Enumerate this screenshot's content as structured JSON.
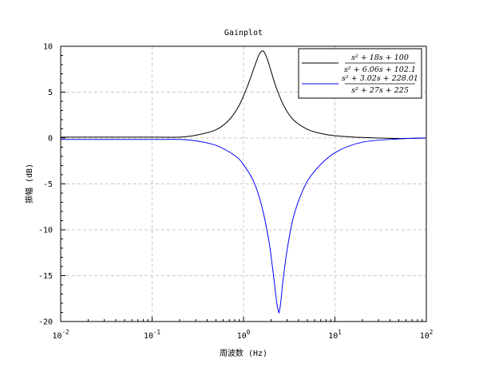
{
  "chart_data": {
    "type": "line",
    "title": "Gainplot",
    "xlabel": "周波数 (Hz)",
    "ylabel": "振幅 (dB)",
    "x_scale": "log",
    "xlim": [
      0.01,
      100
    ],
    "ylim": [
      -20,
      10
    ],
    "grid": true,
    "legend_position": "top-right",
    "x_ticks": [
      {
        "value": 0.01,
        "base": "10",
        "exp": "-2"
      },
      {
        "value": 0.1,
        "base": "10",
        "exp": "-1"
      },
      {
        "value": 1,
        "base": "10",
        "exp": "0"
      },
      {
        "value": 10,
        "base": "10",
        "exp": "1"
      },
      {
        "value": 100,
        "base": "10",
        "exp": "2"
      }
    ],
    "y_ticks": [
      10,
      5,
      0,
      -5,
      -10,
      -15,
      -20
    ],
    "series": [
      {
        "name": "(s^2+18s+100)/(s^2+6.06s+102.1)",
        "legend_num": "s² + 18s + 100",
        "legend_den": "s² + 6.06s + 102.1",
        "color": "#000000",
        "x": [
          0.01,
          0.1,
          0.2,
          0.3,
          0.5,
          0.7,
          0.9,
          1.1,
          1.3,
          1.45,
          1.55,
          1.62,
          1.7,
          1.85,
          2.0,
          2.3,
          2.8,
          3.5,
          5,
          7,
          10,
          20,
          50,
          100
        ],
        "y": [
          0.1,
          0.1,
          0.1,
          0.3,
          0.9,
          2.0,
          3.6,
          5.6,
          7.6,
          8.9,
          9.4,
          9.5,
          9.3,
          8.4,
          7.3,
          5.4,
          3.4,
          2.0,
          0.95,
          0.5,
          0.25,
          0.06,
          -0.05,
          0.0
        ]
      },
      {
        "name": "(s^2+3.02s+228.01)/(s^2+27s+225)",
        "legend_num": "s² + 3.02s + 228.01",
        "legend_den": "s² + 27s + 225",
        "color": "#0000ff",
        "x": [
          0.01,
          0.1,
          0.2,
          0.3,
          0.5,
          0.8,
          1.0,
          1.3,
          1.6,
          1.9,
          2.1,
          2.3,
          2.4,
          2.45,
          2.55,
          2.7,
          3.0,
          3.5,
          4.5,
          6,
          10,
          20,
          50,
          100
        ],
        "y": [
          -0.15,
          -0.15,
          -0.15,
          -0.3,
          -0.8,
          -1.9,
          -2.9,
          -4.8,
          -7.6,
          -11.3,
          -14.5,
          -17.8,
          -18.8,
          -19.0,
          -18.0,
          -15.6,
          -12.2,
          -8.7,
          -5.6,
          -3.6,
          -1.6,
          -0.45,
          -0.1,
          0.0
        ]
      }
    ]
  }
}
